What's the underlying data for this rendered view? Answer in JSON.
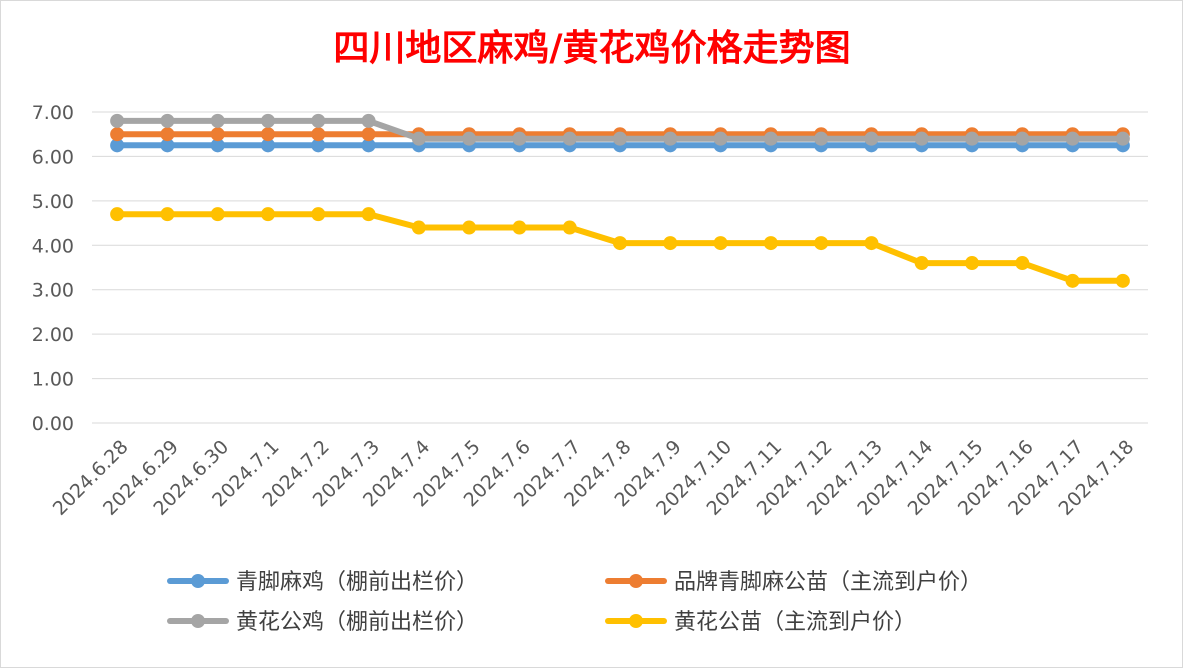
{
  "chart_data": {
    "type": "line",
    "title": "四川地区麻鸡/黄花鸡价格走势图",
    "xlabel": "",
    "ylabel": "",
    "categories": [
      "2024.6.28",
      "2024.6.29",
      "2024.6.30",
      "2024.7.1",
      "2024.7.2",
      "2024.7.3",
      "2024.7.4",
      "2024.7.5",
      "2024.7.6",
      "2024.7.7",
      "2024.7.8",
      "2024.7.9",
      "2024.7.10",
      "2024.7.11",
      "2024.7.12",
      "2024.7.13",
      "2024.7.14",
      "2024.7.15",
      "2024.7.16",
      "2024.7.17",
      "2024.7.18"
    ],
    "ylim": [
      0,
      7
    ],
    "yticks": [
      "0.00",
      "1.00",
      "2.00",
      "3.00",
      "4.00",
      "5.00",
      "6.00",
      "7.00"
    ],
    "grid": true,
    "legend_position": "bottom",
    "series": [
      {
        "name": "青脚麻鸡（棚前出栏价）",
        "color": "#5B9BD5",
        "values": [
          6.25,
          6.25,
          6.25,
          6.25,
          6.25,
          6.25,
          6.25,
          6.25,
          6.25,
          6.25,
          6.25,
          6.25,
          6.25,
          6.25,
          6.25,
          6.25,
          6.25,
          6.25,
          6.25,
          6.25,
          6.25
        ]
      },
      {
        "name": "品牌青脚麻公苗（主流到户价）",
        "color": "#ED7D31",
        "values": [
          6.5,
          6.5,
          6.5,
          6.5,
          6.5,
          6.5,
          6.5,
          6.5,
          6.5,
          6.5,
          6.5,
          6.5,
          6.5,
          6.5,
          6.5,
          6.5,
          6.5,
          6.5,
          6.5,
          6.5,
          6.5
        ]
      },
      {
        "name": "黄花公鸡（棚前出栏价）",
        "color": "#A5A5A5",
        "values": [
          6.8,
          6.8,
          6.8,
          6.8,
          6.8,
          6.8,
          6.4,
          6.4,
          6.4,
          6.4,
          6.4,
          6.4,
          6.4,
          6.4,
          6.4,
          6.4,
          6.4,
          6.4,
          6.4,
          6.4,
          6.4
        ]
      },
      {
        "name": "黄花公苗（主流到户价）",
        "color": "#FFC000",
        "values": [
          4.7,
          4.7,
          4.7,
          4.7,
          4.7,
          4.7,
          4.4,
          4.4,
          4.4,
          4.4,
          4.05,
          4.05,
          4.05,
          4.05,
          4.05,
          4.05,
          3.6,
          3.6,
          3.6,
          3.2,
          3.2
        ]
      }
    ],
    "draw_order": [
      0,
      1,
      2,
      3
    ],
    "legend_order": [
      0,
      1,
      2,
      3
    ]
  }
}
